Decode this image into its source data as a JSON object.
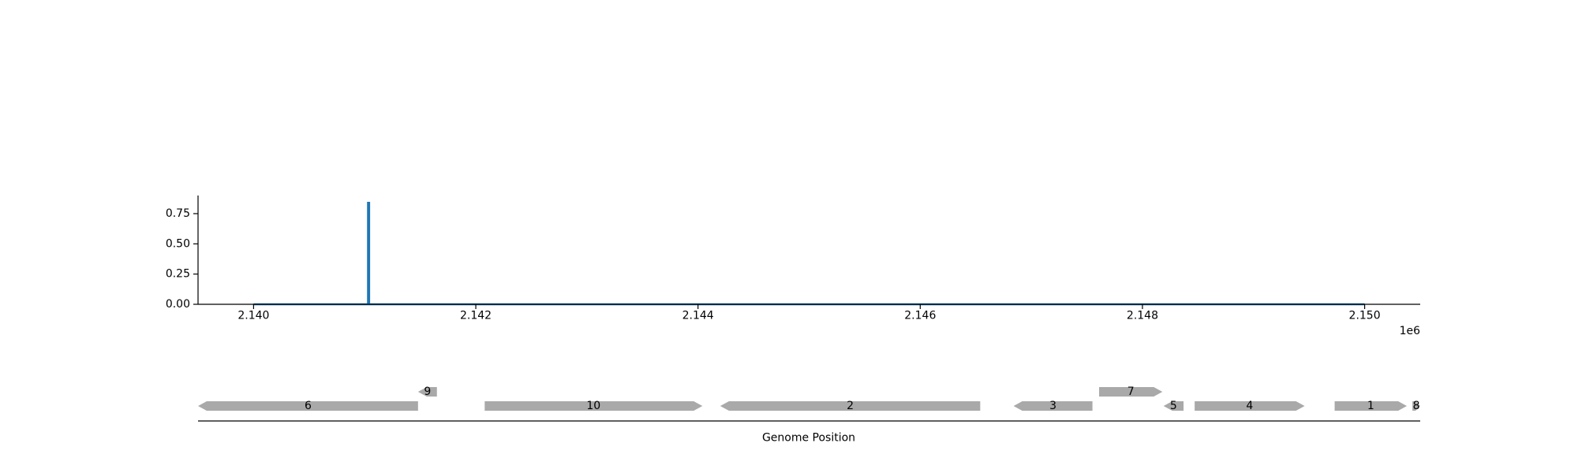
{
  "chart_data": [
    {
      "type": "line",
      "x_offset_label": "1e6",
      "xlim": [
        2139500,
        2150500
      ],
      "ylim": [
        0,
        0.9
      ],
      "xticks": [
        2140000,
        2142000,
        2144000,
        2146000,
        2148000,
        2150000
      ],
      "xtick_labels": [
        "2.140",
        "2.142",
        "2.144",
        "2.146",
        "2.148",
        "2.150"
      ],
      "yticks": [
        0,
        0.25,
        0.5,
        0.75
      ],
      "ytick_labels": [
        "0.00",
        "0.25",
        "0.50",
        "0.75"
      ],
      "grid": false,
      "series": [
        {
          "color": "#1f77b4",
          "x": [
            2140000,
            2141030,
            2141030,
            2141040,
            2141040,
            2150000
          ],
          "y": [
            0,
            0,
            0.84,
            0.84,
            0,
            0
          ]
        }
      ]
    },
    {
      "type": "gene-track",
      "xlabel": "Genome Position",
      "xlim": [
        2139500,
        2150500
      ],
      "gene_color": "#a9a9a9",
      "genes": [
        {
          "label": "6",
          "start": 2139500,
          "end": 2141480,
          "strand": "-",
          "row": 0
        },
        {
          "label": "9",
          "start": 2141480,
          "end": 2141650,
          "strand": "-",
          "row": 1
        },
        {
          "label": "10",
          "start": 2142080,
          "end": 2144040,
          "strand": "+",
          "row": 0
        },
        {
          "label": "2",
          "start": 2144200,
          "end": 2146540,
          "strand": "-",
          "row": 0
        },
        {
          "label": "3",
          "start": 2146840,
          "end": 2147550,
          "strand": "-",
          "row": 0
        },
        {
          "label": "7",
          "start": 2147610,
          "end": 2148180,
          "strand": "+",
          "row": 1
        },
        {
          "label": "5",
          "start": 2148190,
          "end": 2148370,
          "strand": "-",
          "row": 0
        },
        {
          "label": "4",
          "start": 2148470,
          "end": 2149460,
          "strand": "+",
          "row": 0
        },
        {
          "label": "1",
          "start": 2149730,
          "end": 2150380,
          "strand": "+",
          "row": 0
        },
        {
          "label": "8",
          "start": 2150430,
          "end": 2150500,
          "strand": "+",
          "row": 0
        }
      ]
    }
  ]
}
